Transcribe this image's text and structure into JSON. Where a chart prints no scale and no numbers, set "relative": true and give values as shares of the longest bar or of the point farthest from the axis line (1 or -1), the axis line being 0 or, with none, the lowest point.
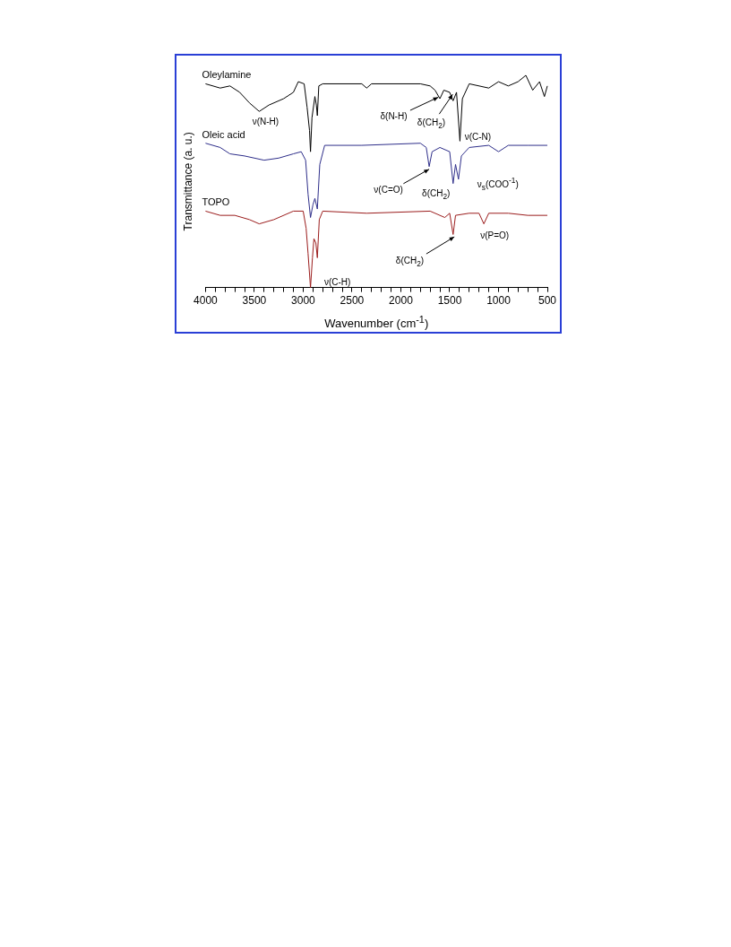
{
  "chart_data": {
    "type": "line",
    "relative": true,
    "xlabel": "Wavenumber (cm$^{-1}$)",
    "ylabel": "Transmittance (a. u.)",
    "xlim": [
      4000,
      500
    ],
    "xticks": [
      4000,
      {
        "value": 3900,
        "label": null
      },
      {
        "value": 3800,
        "label": null
      },
      {
        "value": 3700,
        "label": null
      },
      {
        "value": 3600,
        "label": null
      },
      3500,
      {
        "value": 3400,
        "label": null
      },
      {
        "value": 3300,
        "label": null
      },
      {
        "value": 3200,
        "label": null
      },
      {
        "value": 3100,
        "label": null
      },
      3000,
      {
        "value": 2900,
        "label": null
      },
      {
        "value": 2800,
        "label": null
      },
      {
        "value": 2700,
        "label": null
      },
      {
        "value": 2600,
        "label": null
      },
      2500,
      {
        "value": 2400,
        "label": null
      },
      {
        "value": 2300,
        "label": null
      },
      {
        "value": 2200,
        "label": null
      },
      {
        "value": 2100,
        "label": null
      },
      2000,
      {
        "value": 1900,
        "label": null
      },
      {
        "value": 1800,
        "label": null
      },
      {
        "value": 1700,
        "label": null
      },
      {
        "value": 1600,
        "label": null
      },
      1500,
      {
        "value": 1400,
        "label": null
      },
      {
        "value": 1300,
        "label": null
      },
      {
        "value": 1200,
        "label": null
      },
      {
        "value": 1100,
        "label": null
      },
      1000,
      {
        "value": 900,
        "label": null
      },
      {
        "value": 800,
        "label": null
      },
      {
        "value": 700,
        "label": null
      },
      {
        "value": 600,
        "label": null
      },
      500
    ],
    "grid": false,
    "legend": false,
    "marker": "none",
    "line_style": "solid",
    "series": [
      {
        "name": "Oleylamine",
        "color": "#000000",
        "x": [
          4000,
          3850,
          3750,
          3650,
          3550,
          3450,
          3350,
          3200,
          3100,
          3050,
          2990,
          2960,
          2935,
          2925,
          2910,
          2880,
          2865,
          2855,
          2840,
          2800,
          2400,
          2350,
          2300,
          1800,
          1700,
          1650,
          1600,
          1560,
          1500,
          1465,
          1430,
          1395,
          1370,
          1300,
          1100,
          1000,
          900,
          800,
          720,
          650,
          580,
          530,
          500
        ],
        "values": [
          0.96,
          0.94,
          0.95,
          0.92,
          0.87,
          0.83,
          0.86,
          0.89,
          0.92,
          0.97,
          0.96,
          0.85,
          0.74,
          0.64,
          0.8,
          0.9,
          0.86,
          0.81,
          0.95,
          0.96,
          0.96,
          0.94,
          0.96,
          0.96,
          0.95,
          0.93,
          0.89,
          0.93,
          0.92,
          0.88,
          0.92,
          0.69,
          0.89,
          0.96,
          0.94,
          0.97,
          0.95,
          0.97,
          1.0,
          0.93,
          0.97,
          0.9,
          0.95
        ]
      },
      {
        "name": "Oleic acid",
        "color": "#2e2e8a",
        "x": [
          4000,
          3850,
          3750,
          3600,
          3400,
          3250,
          3100,
          3020,
          2975,
          2950,
          2925,
          2900,
          2880,
          2855,
          2830,
          2780,
          2400,
          1800,
          1740,
          1710,
          1680,
          1600,
          1500,
          1465,
          1440,
          1410,
          1380,
          1300,
          1100,
          1000,
          900,
          700,
          500
        ],
        "values": [
          0.68,
          0.66,
          0.63,
          0.62,
          0.6,
          0.61,
          0.63,
          0.64,
          0.6,
          0.44,
          0.33,
          0.39,
          0.42,
          0.37,
          0.58,
          0.67,
          0.67,
          0.68,
          0.66,
          0.57,
          0.64,
          0.66,
          0.64,
          0.49,
          0.58,
          0.51,
          0.62,
          0.66,
          0.67,
          0.64,
          0.67,
          0.67,
          0.67
        ]
      },
      {
        "name": "TOPO",
        "color": "#9b1c1c",
        "x": [
          4000,
          3850,
          3700,
          3550,
          3450,
          3300,
          3100,
          3000,
          2970,
          2950,
          2925,
          2905,
          2890,
          2870,
          2855,
          2835,
          2800,
          2350,
          1700,
          1550,
          1500,
          1465,
          1440,
          1300,
          1200,
          1150,
          1100,
          900,
          700,
          500
        ],
        "values": [
          0.36,
          0.34,
          0.34,
          0.32,
          0.3,
          0.32,
          0.36,
          0.36,
          0.28,
          0.16,
          0,
          0.14,
          0.23,
          0.21,
          0.14,
          0.32,
          0.36,
          0.35,
          0.36,
          0.33,
          0.35,
          0.25,
          0.34,
          0.35,
          0.35,
          0.3,
          0.35,
          0.35,
          0.34,
          0.34
        ]
      }
    ],
    "annotations": [
      {
        "text": "ν(N-H)",
        "x": 3450,
        "y": 0.83
      },
      {
        "text": "δ(N-H)",
        "x": 1651,
        "y": 0.89
      },
      {
        "text": "δ(CH$_{2}$)",
        "x": 1486,
        "y": 0.9
      },
      {
        "text": "ν(C-N)",
        "x": 1395,
        "y": 0.69
      },
      {
        "text": "ν(C=O)",
        "x": 1742,
        "y": 0.55
      },
      {
        "text": "δ(CH$_{2}$)",
        "x": 1465,
        "y": 0.49
      },
      {
        "text": "ν$_{s}$(COO$^{-1}$)",
        "x": 1410,
        "y": 0.51
      },
      {
        "text": "δ(CH$_{2}$)",
        "x": 1486,
        "y": 0.23
      },
      {
        "text": "ν(P=O)",
        "x": 1150,
        "y": 0.3
      },
      {
        "text": "ν(C-H)",
        "x": 2925,
        "y": 0
      }
    ]
  }
}
